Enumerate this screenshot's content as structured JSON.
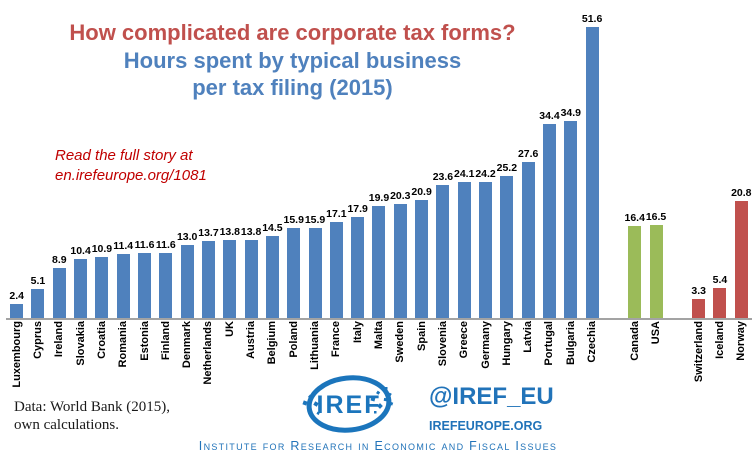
{
  "title": {
    "line1": "How complicated are corporate tax forms?",
    "line2": "Hours spent by typical business",
    "line3": "per tax filing (2015)"
  },
  "annotation": {
    "line1": "Read the full story at",
    "line2": "en.irefeurope.org/1081"
  },
  "source_note": {
    "line1": "Data: World Bank (2015),",
    "line2": "own calculations."
  },
  "footer": {
    "logo_text": "IREF",
    "twitter_handle": "@IREF_EU",
    "website": "IREFEUROPE.ORG",
    "tagline": "Institute for Research in Economic and Fiscal Issues"
  },
  "colors": {
    "title_red": "#C0504D",
    "title_blue": "#4F81BD",
    "annotation_red": "#C00000",
    "brand_blue": "#2173B9",
    "logo_blue": "#1B75BC",
    "axis_gray": "#a3a3a3"
  },
  "chart_data": {
    "type": "bar",
    "title": "How complicated are corporate tax forms? Hours spent by typical business per tax filing (2015)",
    "xlabel": "",
    "ylabel": "Hours spent per tax filing",
    "ylim": [
      0,
      55
    ],
    "grid": false,
    "legend": false,
    "value_labels": true,
    "x_labels_rotated_90": true,
    "gaps_after_labels": [
      "Czechia",
      "USA"
    ],
    "group_colors": {
      "eu": "#4F81BD",
      "north-america": "#9BBB59",
      "efta": "#C0504D"
    },
    "bars": [
      {
        "label": "Luxembourg",
        "value": 2.4,
        "group": "eu"
      },
      {
        "label": "Cyprus",
        "value": 5.1,
        "group": "eu"
      },
      {
        "label": "Ireland",
        "value": 8.9,
        "group": "eu"
      },
      {
        "label": "Slovakia",
        "value": 10.4,
        "group": "eu"
      },
      {
        "label": "Croatia",
        "value": 10.9,
        "group": "eu"
      },
      {
        "label": "Romania",
        "value": 11.4,
        "group": "eu"
      },
      {
        "label": "Estonia",
        "value": 11.6,
        "group": "eu"
      },
      {
        "label": "Finland",
        "value": 11.6,
        "group": "eu"
      },
      {
        "label": "Denmark",
        "value": 13.0,
        "group": "eu"
      },
      {
        "label": "Netherlands",
        "value": 13.7,
        "group": "eu"
      },
      {
        "label": "UK",
        "value": 13.8,
        "group": "eu"
      },
      {
        "label": "Austria",
        "value": 13.8,
        "group": "eu"
      },
      {
        "label": "Belgium",
        "value": 14.5,
        "group": "eu"
      },
      {
        "label": "Poland",
        "value": 15.9,
        "group": "eu"
      },
      {
        "label": "Lithuania",
        "value": 15.9,
        "group": "eu"
      },
      {
        "label": "France",
        "value": 17.1,
        "group": "eu"
      },
      {
        "label": "Italy",
        "value": 17.9,
        "group": "eu"
      },
      {
        "label": "Malta",
        "value": 19.9,
        "group": "eu"
      },
      {
        "label": "Sweden",
        "value": 20.3,
        "group": "eu"
      },
      {
        "label": "Spain",
        "value": 20.9,
        "group": "eu"
      },
      {
        "label": "Slovenia",
        "value": 23.6,
        "group": "eu"
      },
      {
        "label": "Greece",
        "value": 24.1,
        "group": "eu"
      },
      {
        "label": "Germany",
        "value": 24.2,
        "group": "eu"
      },
      {
        "label": "Hungary",
        "value": 25.2,
        "group": "eu"
      },
      {
        "label": "Latvia",
        "value": 27.6,
        "group": "eu"
      },
      {
        "label": "Portugal",
        "value": 34.4,
        "group": "eu"
      },
      {
        "label": "Bulgaria",
        "value": 34.9,
        "group": "eu"
      },
      {
        "label": "Czechia",
        "value": 51.6,
        "group": "eu"
      },
      {
        "label": "Canada",
        "value": 16.4,
        "group": "north-america"
      },
      {
        "label": "USA",
        "value": 16.5,
        "group": "north-america"
      },
      {
        "label": "Switzerland",
        "value": 3.3,
        "group": "efta"
      },
      {
        "label": "Iceland",
        "value": 5.4,
        "group": "efta"
      },
      {
        "label": "Norway",
        "value": 20.8,
        "group": "efta"
      }
    ]
  }
}
